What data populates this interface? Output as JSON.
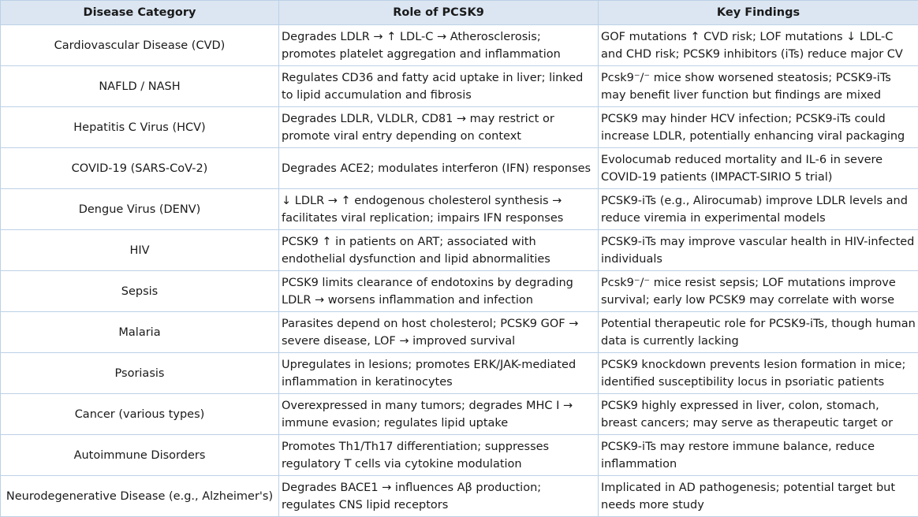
{
  "table": {
    "headers": [
      "Disease Category",
      "Role of PCSK9",
      "Key Findings"
    ],
    "rows": [
      {
        "category": "Cardiovascular Disease (CVD)",
        "role": "Degrades LDLR → ↑ LDL-C → Atherosclerosis; promotes platelet aggregation and inflammation",
        "findings": "GOF mutations ↑ CVD risk; LOF mutations ↓ LDL-C and CHD risk; PCSK9 inhibitors (iTs) reduce major CV events"
      },
      {
        "category": "NAFLD / NASH",
        "role": "Regulates CD36 and fatty acid uptake in liver; linked to lipid accumulation and fibrosis",
        "findings": "Pcsk9⁻/⁻ mice show worsened steatosis; PCSK9-iTs may benefit liver function but findings are mixed"
      },
      {
        "category": "Hepatitis C Virus (HCV)",
        "role": "Degrades LDLR, VLDLR, CD81 → may restrict or promote viral entry depending on context",
        "findings": "PCSK9 may hinder HCV infection; PCSK9-iTs could increase LDLR, potentially enhancing viral packaging"
      },
      {
        "category": "COVID-19 (SARS-CoV-2)",
        "role": "Degrades ACE2; modulates interferon (IFN) responses",
        "findings": "Evolocumab reduced mortality and IL-6 in severe COVID-19 patients (IMPACT-SIRIO 5 trial)"
      },
      {
        "category": "Dengue Virus (DENV)",
        "role": "↓ LDLR → ↑ endogenous cholesterol synthesis → facilitates viral replication; impairs IFN responses",
        "findings": "PCSK9-iTs (e.g., Alirocumab) improve LDLR levels and reduce viremia in experimental models"
      },
      {
        "category": "HIV",
        "role": "PCSK9 ↑ in patients on ART; associated with endothelial dysfunction and lipid abnormalities",
        "findings": "PCSK9-iTs may improve vascular health in HIV-infected individuals"
      },
      {
        "category": "Sepsis",
        "role": "PCSK9 limits clearance of endotoxins by degrading LDLR → worsens inflammation and infection",
        "findings": "Pcsk9⁻/⁻ mice resist sepsis; LOF mutations improve survival; early low PCSK9 may correlate with worse outcomes"
      },
      {
        "category": "Malaria",
        "role": "Parasites depend on host cholesterol; PCSK9 GOF → severe disease, LOF → improved survival",
        "findings": "Potential therapeutic role for PCSK9-iTs, though human data is currently lacking"
      },
      {
        "category": "Psoriasis",
        "role": "Upregulates in lesions; promotes ERK/JAK-mediated inflammation in keratinocytes",
        "findings": "PCSK9 knockdown prevents lesion formation in mice; identified susceptibility locus in psoriatic patients"
      },
      {
        "category": "Cancer (various types)",
        "role": "Overexpressed in many tumors; degrades MHC I → immune evasion; regulates lipid uptake",
        "findings": "PCSK9 highly expressed in liver, colon, stomach, breast cancers; may serve as therapeutic target or biomarker"
      },
      {
        "category": "Autoimmune Disorders",
        "role": "Promotes Th1/Th17 differentiation; suppresses regulatory T cells via cytokine modulation",
        "findings": "PCSK9-iTs may restore immune balance, reduce inflammation"
      },
      {
        "category": "Neurodegenerative Disease (e.g., Alzheimer's)",
        "role": "Degrades BACE1 → influences Aβ production; regulates CNS lipid receptors",
        "findings": "Implicated in AD pathogenesis; potential target but needs more study"
      }
    ]
  }
}
